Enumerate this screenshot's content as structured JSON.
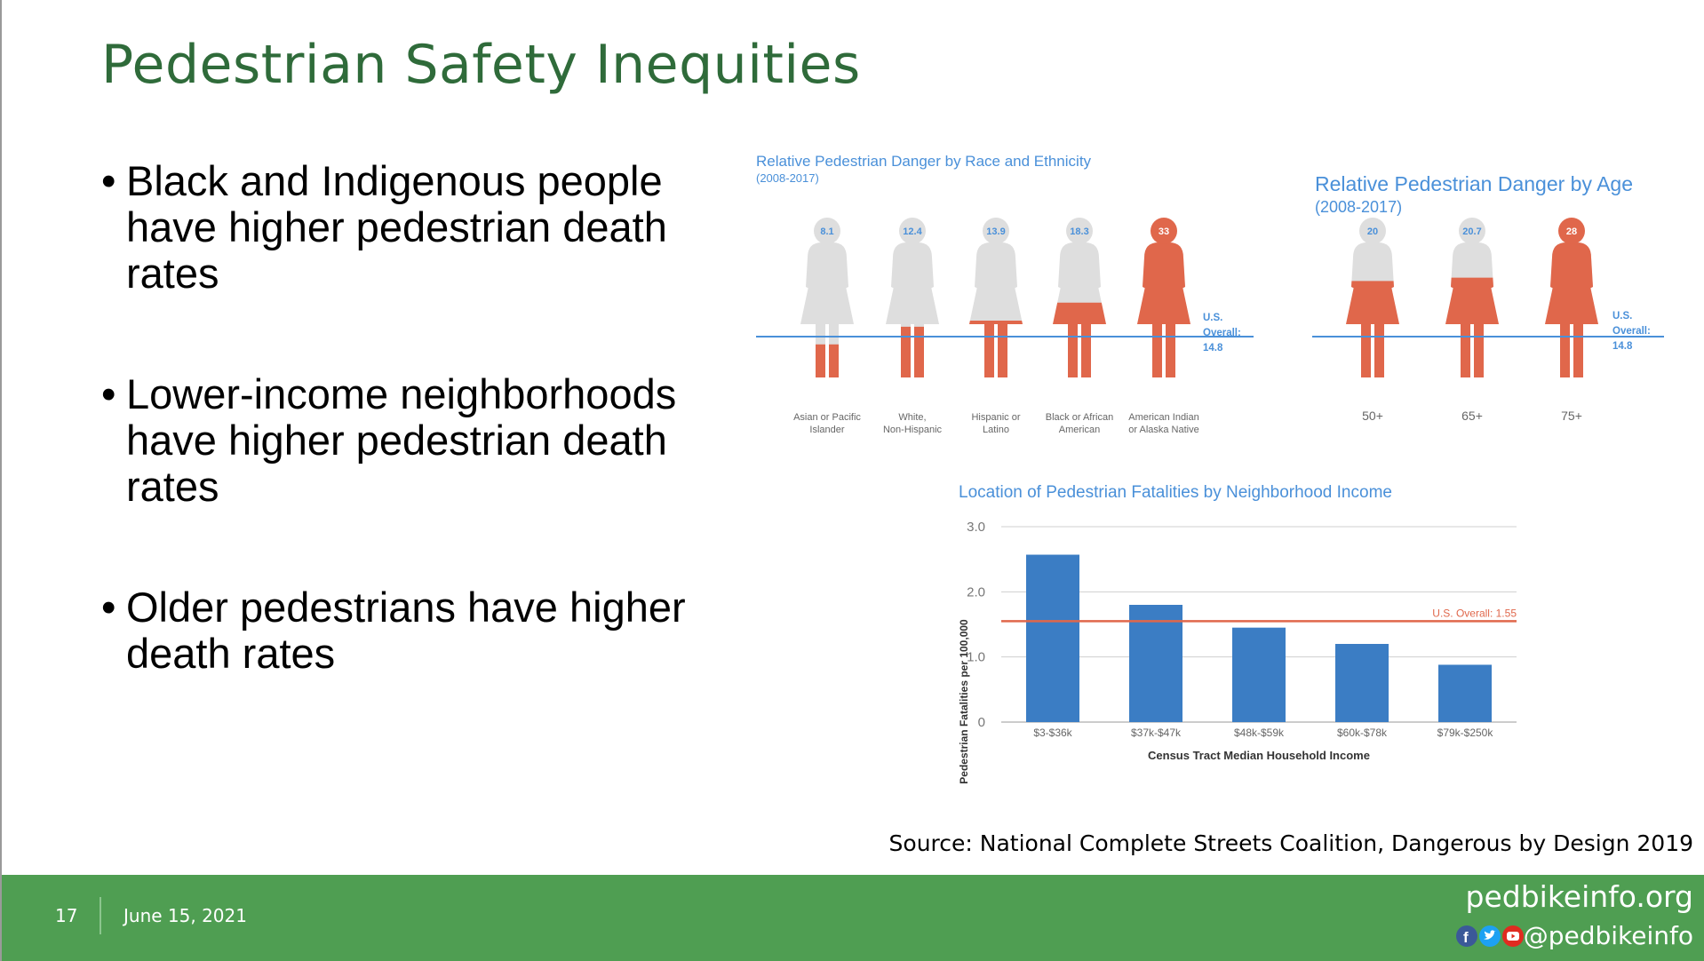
{
  "slide": {
    "title": "Pedestrian Safety Inequities",
    "bullets": [
      "Black and Indigenous people have higher pedestrian death rates",
      "Lower-income neighborhoods have higher pedestrian death rates",
      "Older pedestrians have higher death rates"
    ],
    "bullet_marker": "•",
    "source": "Source: National Complete Streets Coalition, Dangerous by Design 2019",
    "footer": {
      "page_number": "17",
      "date": "June 15, 2021",
      "site": "pedbikeinfo.org",
      "handle": "@pedbikeinfo",
      "social_icons": [
        "facebook-icon",
        "twitter-icon",
        "youtube-icon"
      ],
      "background_color": "#4f9e52"
    },
    "title_color": "#2f6b3a"
  },
  "chart_data": [
    {
      "type": "bar",
      "render": "pictograph",
      "title": "Relative Pedestrian Danger by Race and Ethnicity",
      "subtitle": "(2008-2017)",
      "categories": [
        "Asian or Pacific Islander",
        "White, Non-Hispanic",
        "Hispanic or Latino",
        "Black or African American",
        "American Indian or Alaska Native"
      ],
      "category_lines": [
        [
          "Asian or Pacific",
          "Islander"
        ],
        [
          "White,",
          "Non-Hispanic"
        ],
        [
          "Hispanic or",
          "Latino"
        ],
        [
          "Black or African",
          "American"
        ],
        [
          "American Indian",
          "or Alaska Native"
        ]
      ],
      "values": [
        8.1,
        12.4,
        13.9,
        18.3,
        33
      ],
      "value_labels": [
        "8.1",
        "12.4",
        "13.9",
        "18.3",
        "33"
      ],
      "scale_max": 33,
      "reference_line": {
        "value": 14.8,
        "label_lines": [
          "U.S.",
          "Overall:",
          "14.8"
        ]
      },
      "colors": {
        "fill": "#e0674b",
        "empty": "#dedede",
        "line": "#4a90d9",
        "title": "#4a90d9"
      }
    },
    {
      "type": "bar",
      "render": "pictograph",
      "title": "Relative Pedestrian Danger by Age",
      "subtitle": "(2008-2017)",
      "categories": [
        "50+",
        "65+",
        "75+"
      ],
      "category_lines": [
        [
          "50+"
        ],
        [
          "65+"
        ],
        [
          "75+"
        ]
      ],
      "values": [
        20,
        20.7,
        28
      ],
      "value_labels": [
        "20",
        "20.7",
        "28"
      ],
      "scale_max": 28,
      "reference_line": {
        "value": 14.8,
        "label_lines": [
          "U.S.",
          "Overall:",
          "14.8"
        ]
      },
      "colors": {
        "fill": "#e0674b",
        "empty": "#dedede",
        "line": "#4a90d9",
        "title": "#4a90d9"
      }
    },
    {
      "type": "bar",
      "title": "Location of Pedestrian Fatalities by Neighborhood Income",
      "categories": [
        "$3-$36k",
        "$37k-$47k",
        "$48k-$59k",
        "$60k-$78k",
        "$79k-$250k"
      ],
      "values": [
        2.57,
        1.8,
        1.45,
        1.2,
        0.88
      ],
      "xlabel": "Census Tract Median Household Income",
      "ylabel": "Pedestrian Fatalities per 100,000",
      "ylim": [
        0,
        3.0
      ],
      "yticks": [
        0,
        1.0,
        2.0,
        3.0
      ],
      "ytick_labels": [
        "0",
        "1.0",
        "2.0",
        "3.0"
      ],
      "grid": true,
      "reference_line": {
        "value": 1.55,
        "label": "U.S. Overall: 1.55"
      },
      "colors": {
        "bar": "#3b7dc4",
        "reference": "#e0674b",
        "title": "#4a90d9",
        "grid": "#cfcfcf"
      }
    }
  ]
}
